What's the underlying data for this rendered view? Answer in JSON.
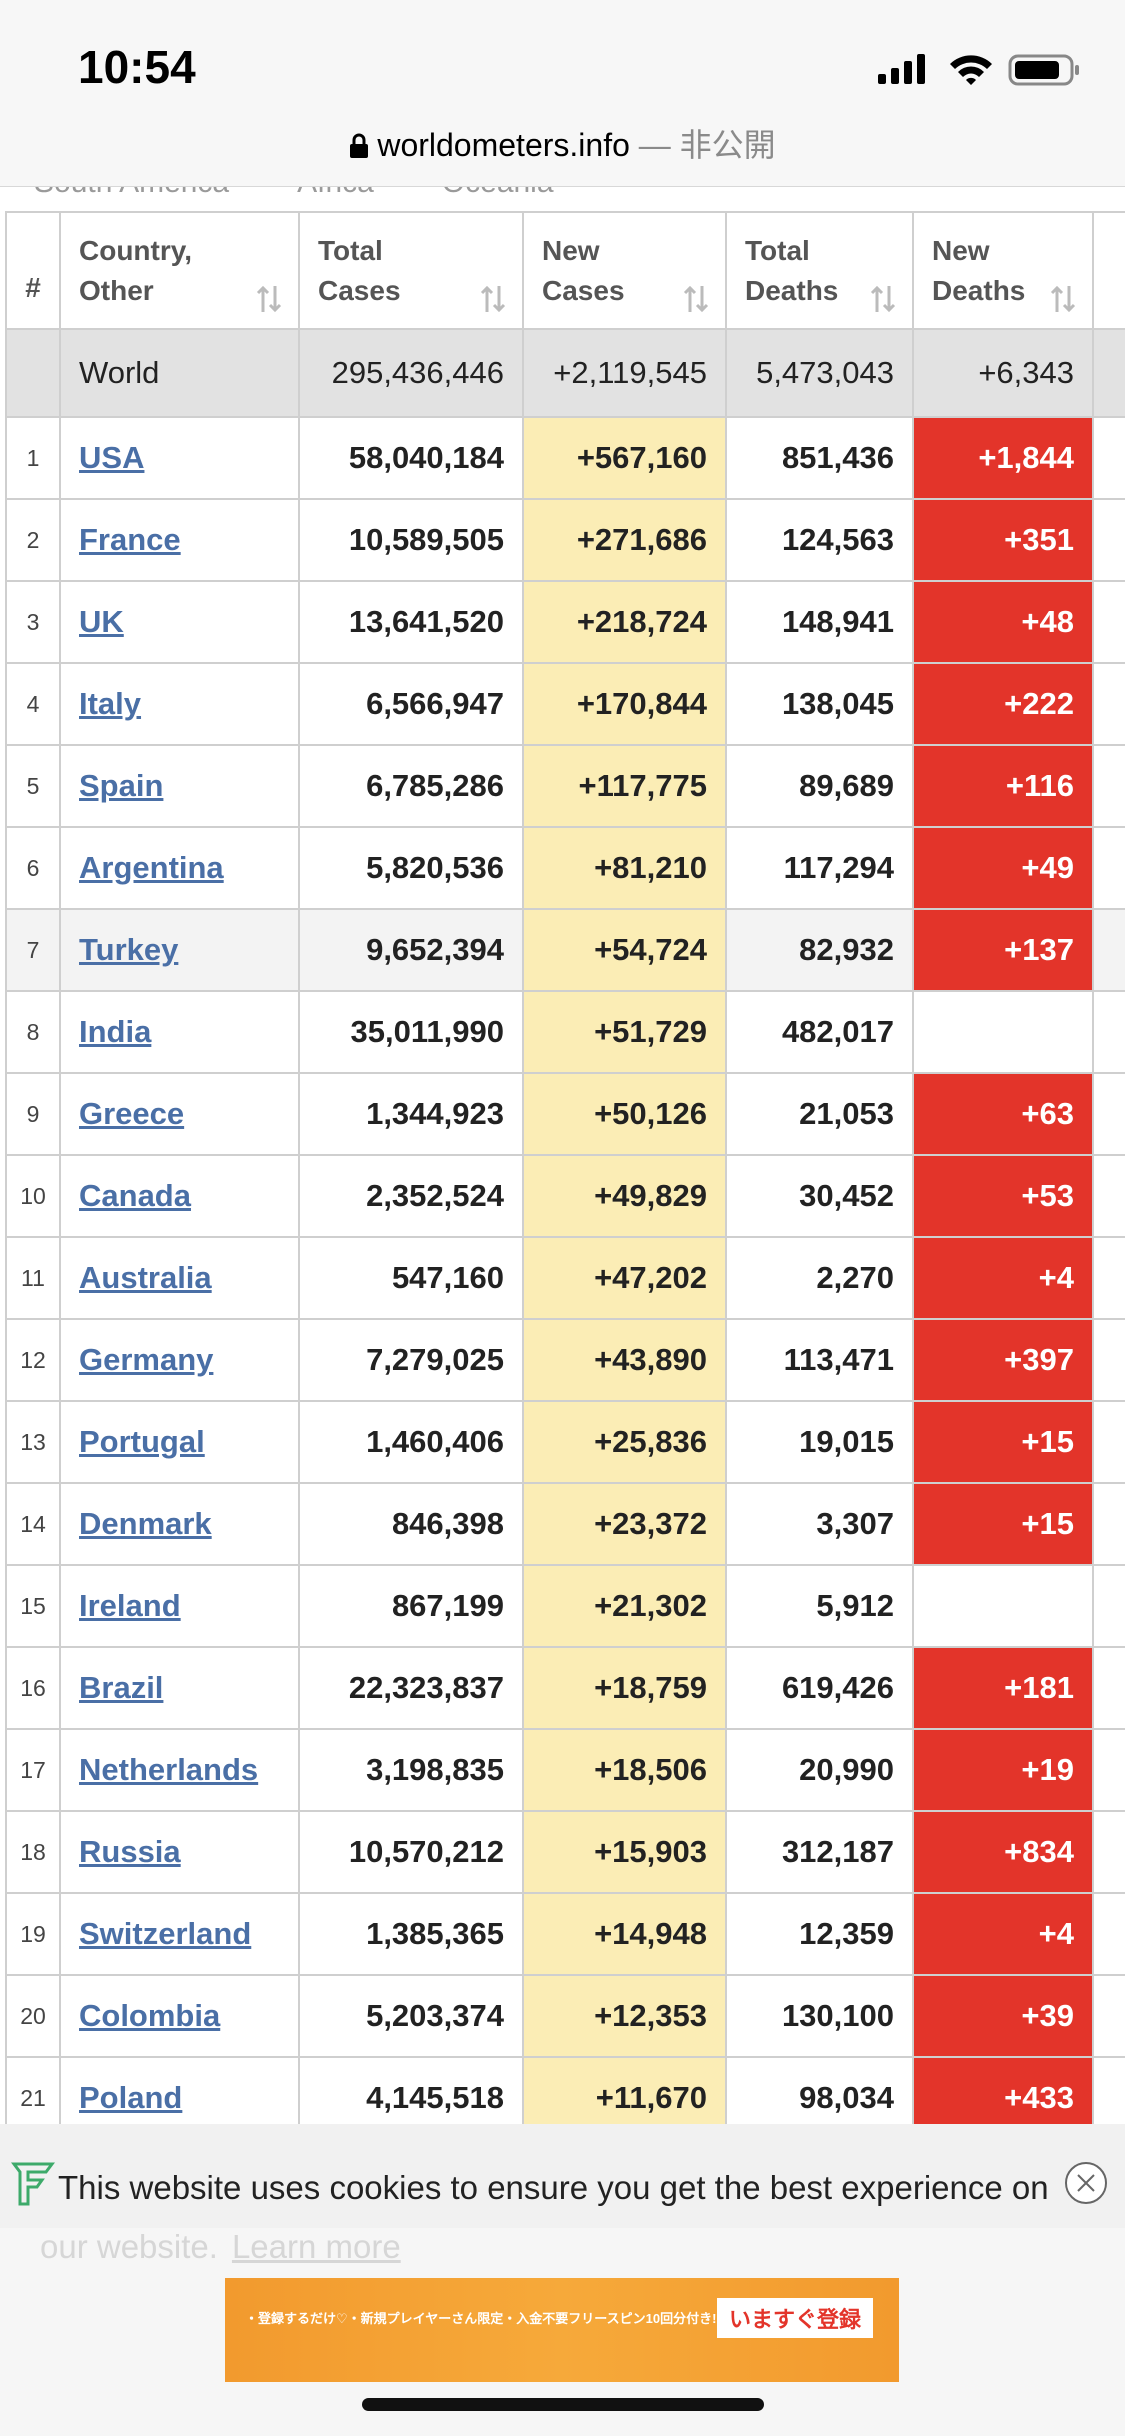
{
  "status": {
    "time": "10:54"
  },
  "url": {
    "domain": "worldometers.info",
    "suffix": "— 非公開"
  },
  "tabs": [
    "South America",
    "Africa",
    "Oceania"
  ],
  "table": {
    "headers": [
      "#",
      "Country, Other",
      "Total Cases",
      "New Cases",
      "Total Deaths",
      "New Deaths"
    ],
    "world": [
      "World",
      "295,436,446",
      "+2,119,545",
      "5,473,043",
      "+6,343"
    ],
    "rows": [
      [
        "1",
        "USA",
        "58,040,184",
        "+567,160",
        "851,436",
        "+1,844"
      ],
      [
        "2",
        "France",
        "10,589,505",
        "+271,686",
        "124,563",
        "+351"
      ],
      [
        "3",
        "UK",
        "13,641,520",
        "+218,724",
        "148,941",
        "+48"
      ],
      [
        "4",
        "Italy",
        "6,566,947",
        "+170,844",
        "138,045",
        "+222"
      ],
      [
        "5",
        "Spain",
        "6,785,286",
        "+117,775",
        "89,689",
        "+116"
      ],
      [
        "6",
        "Argentina",
        "5,820,536",
        "+81,210",
        "117,294",
        "+49"
      ],
      [
        "7",
        "Turkey",
        "9,652,394",
        "+54,724",
        "82,932",
        "+137"
      ],
      [
        "8",
        "India",
        "35,011,990",
        "+51,729",
        "482,017",
        null
      ],
      [
        "9",
        "Greece",
        "1,344,923",
        "+50,126",
        "21,053",
        "+63"
      ],
      [
        "10",
        "Canada",
        "2,352,524",
        "+49,829",
        "30,452",
        "+53"
      ],
      [
        "11",
        "Australia",
        "547,160",
        "+47,202",
        "2,270",
        "+4"
      ],
      [
        "12",
        "Germany",
        "7,279,025",
        "+43,890",
        "113,471",
        "+397"
      ],
      [
        "13",
        "Portugal",
        "1,460,406",
        "+25,836",
        "19,015",
        "+15"
      ],
      [
        "14",
        "Denmark",
        "846,398",
        "+23,372",
        "3,307",
        "+15"
      ],
      [
        "15",
        "Ireland",
        "867,199",
        "+21,302",
        "5,912",
        null
      ],
      [
        "16",
        "Brazil",
        "22,323,837",
        "+18,759",
        "619,426",
        "+181"
      ],
      [
        "17",
        "Netherlands",
        "3,198,835",
        "+18,506",
        "20,990",
        "+19"
      ],
      [
        "18",
        "Russia",
        "10,570,212",
        "+15,903",
        "312,187",
        "+834"
      ],
      [
        "19",
        "Switzerland",
        "1,385,365",
        "+14,948",
        "12,359",
        "+4"
      ],
      [
        "20",
        "Colombia",
        "5,203,374",
        "+12,353",
        "130,100",
        "+39"
      ],
      [
        "21",
        "Poland",
        "4,145,518",
        "+11,670",
        "98,034",
        "+433"
      ]
    ]
  },
  "cookie": {
    "text": "This website uses cookies to ensure you get the best experience on",
    "text2": "our website.",
    "link": "Learn more"
  },
  "ad": {
    "line": "・登録するだけ♡・新規プレイヤーさん限定・入金不要フリースピン10回分付き!",
    "button": "いますぐ登録"
  }
}
